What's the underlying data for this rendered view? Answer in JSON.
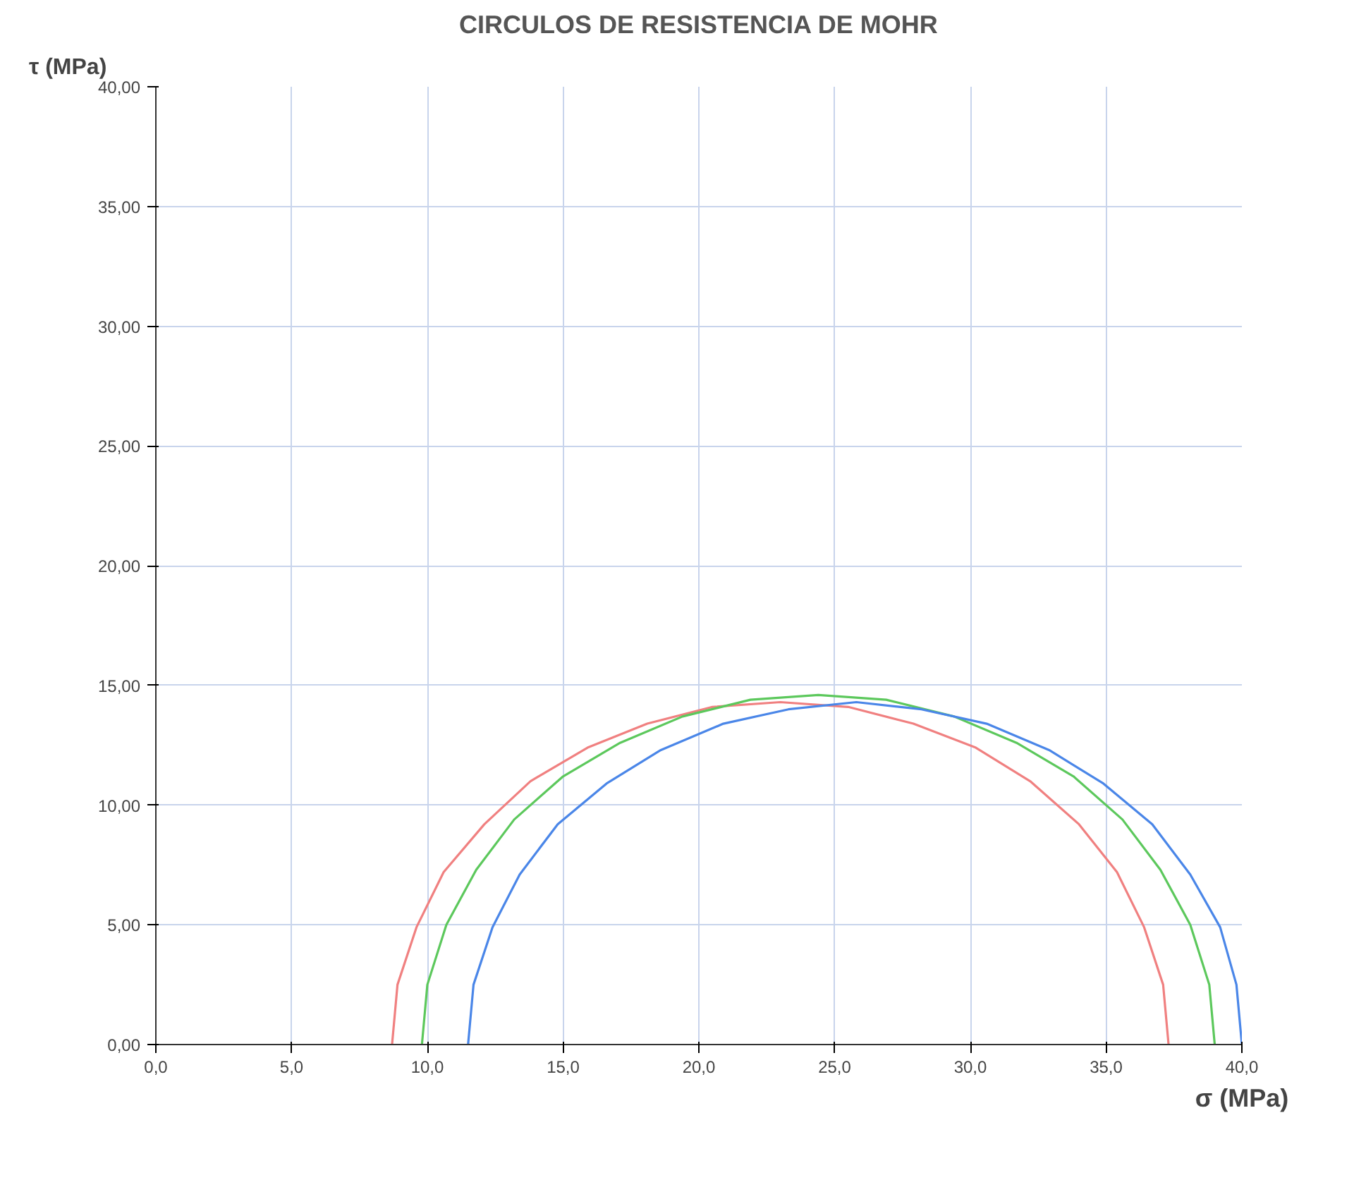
{
  "chart_data": {
    "type": "line",
    "title": "CIRCULOS DE RESISTENCIA DE MOHR",
    "xlabel": "σ (MPa)",
    "ylabel": "τ (MPa)",
    "xlim": [
      0,
      40
    ],
    "ylim": [
      0,
      40
    ],
    "xticks": [
      {
        "value": 0,
        "label": "0,0"
      },
      {
        "value": 5,
        "label": "5,0"
      },
      {
        "value": 10,
        "label": "10,0"
      },
      {
        "value": 15,
        "label": "15,0"
      },
      {
        "value": 20,
        "label": "20,0"
      },
      {
        "value": 25,
        "label": "25,0"
      },
      {
        "value": 30,
        "label": "30,0"
      },
      {
        "value": 35,
        "label": "35,0"
      },
      {
        "value": 40,
        "label": "40,0"
      }
    ],
    "yticks": [
      {
        "value": 0,
        "label": "0,00"
      },
      {
        "value": 5,
        "label": "5,00"
      },
      {
        "value": 10,
        "label": "10,00"
      },
      {
        "value": 15,
        "label": "15,00"
      },
      {
        "value": 20,
        "label": "20,00"
      },
      {
        "value": 25,
        "label": "25,00"
      },
      {
        "value": 30,
        "label": "30,00"
      },
      {
        "value": 35,
        "label": "35,00"
      },
      {
        "value": 40,
        "label": "40,00"
      }
    ],
    "grid": true,
    "marker": "none",
    "line_style": "solid",
    "series": [
      {
        "color": "#f08080",
        "x": [
          8.7,
          8.9,
          9.6,
          10.6,
          12.1,
          13.8,
          15.9,
          18.1,
          20.5,
          23.0,
          25.5,
          27.9,
          30.2,
          32.2,
          34.0,
          35.4,
          36.4,
          37.1,
          37.3
        ],
        "values": [
          0,
          2.5,
          4.9,
          7.2,
          9.2,
          11.0,
          12.4,
          13.4,
          14.1,
          14.3,
          14.1,
          13.4,
          12.4,
          11.0,
          9.2,
          7.2,
          4.9,
          2.5,
          0
        ]
      },
      {
        "color": "#5cc85c",
        "x": [
          9.8,
          10.0,
          10.7,
          11.8,
          13.2,
          15.0,
          17.1,
          19.4,
          21.9,
          24.4,
          26.9,
          29.4,
          31.7,
          33.8,
          35.6,
          37.0,
          38.1,
          38.8,
          39.0
        ],
        "values": [
          0,
          2.5,
          5.0,
          7.3,
          9.4,
          11.2,
          12.6,
          13.7,
          14.4,
          14.6,
          14.4,
          13.7,
          12.6,
          11.2,
          9.4,
          7.3,
          5.0,
          2.5,
          0
        ]
      },
      {
        "color": "#4a86e8",
        "x": [
          11.5,
          11.7,
          12.4,
          13.4,
          14.8,
          16.6,
          18.6,
          20.9,
          23.3,
          25.8,
          28.2,
          30.6,
          32.9,
          34.9,
          36.7,
          38.1,
          39.2,
          39.8,
          40.0
        ],
        "values": [
          0,
          2.5,
          4.9,
          7.1,
          9.2,
          10.9,
          12.3,
          13.4,
          14.0,
          14.3,
          14.0,
          13.4,
          12.3,
          10.9,
          9.2,
          7.1,
          4.9,
          2.5,
          0
        ]
      }
    ]
  }
}
